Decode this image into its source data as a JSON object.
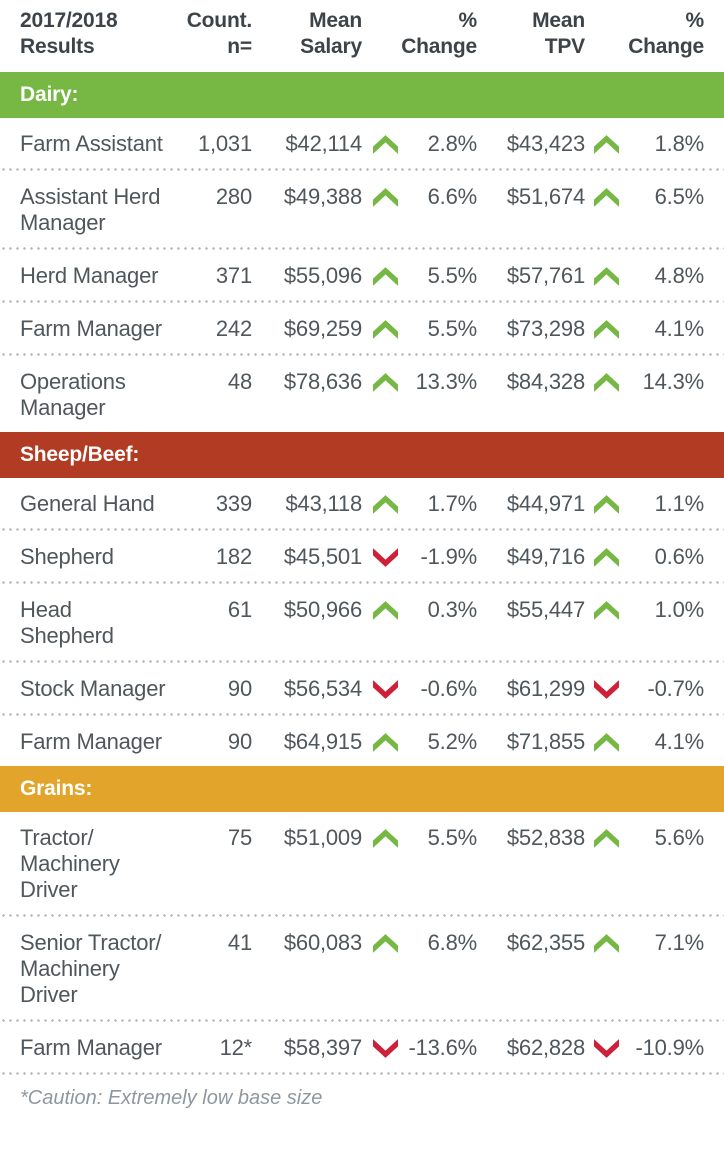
{
  "header": {
    "col_role": "2017/2018\nResults",
    "col_count": "Count.\nn=",
    "col_salary": "Mean\nSalary",
    "col_salary_change": "%\nChange",
    "col_tpv": "Mean\nTPV",
    "col_tpv_change": "%\nChange"
  },
  "colors": {
    "up_arrow": "#76b843",
    "down_arrow": "#cd2139",
    "dairy_bar": "#76b843",
    "sheep_beef_bar": "#b23b24",
    "grains_bar": "#e2a42b",
    "header_text": "#3d4449",
    "body_text": "#50575c",
    "footnote_text": "#8e97a0"
  },
  "sections": [
    {
      "label": "Dairy:",
      "name": "dairy",
      "color": "#76b843",
      "rows": [
        {
          "role": "Farm Assistant",
          "count": "1,031",
          "salary": "$42,114",
          "salary_trend": "up",
          "salary_change": "2.8%",
          "tpv": "$43,423",
          "tpv_trend": "up",
          "tpv_change": "1.8%"
        },
        {
          "role": "Assistant Herd\nManager",
          "count": "280",
          "salary": "$49,388",
          "salary_trend": "up",
          "salary_change": "6.6%",
          "tpv": "$51,674",
          "tpv_trend": "up",
          "tpv_change": "6.5%"
        },
        {
          "role": "Herd Manager",
          "count": "371",
          "salary": "$55,096",
          "salary_trend": "up",
          "salary_change": "5.5%",
          "tpv": "$57,761",
          "tpv_trend": "up",
          "tpv_change": "4.8%"
        },
        {
          "role": "Farm Manager",
          "count": "242",
          "salary": "$69,259",
          "salary_trend": "up",
          "salary_change": "5.5%",
          "tpv": "$73,298",
          "tpv_trend": "up",
          "tpv_change": "4.1%"
        },
        {
          "role": "Operations\nManager",
          "count": "48",
          "salary": "$78,636",
          "salary_trend": "up",
          "salary_change": "13.3%",
          "tpv": "$84,328",
          "tpv_trend": "up",
          "tpv_change": "14.3%"
        }
      ]
    },
    {
      "label": "Sheep/Beef:",
      "name": "sheep-beef",
      "color": "#b23b24",
      "rows": [
        {
          "role": "General Hand",
          "count": "339",
          "salary": "$43,118",
          "salary_trend": "up",
          "salary_change": "1.7%",
          "tpv": "$44,971",
          "tpv_trend": "up",
          "tpv_change": "1.1%"
        },
        {
          "role": "Shepherd",
          "count": "182",
          "salary": "$45,501",
          "salary_trend": "down",
          "salary_change": "-1.9%",
          "tpv": "$49,716",
          "tpv_trend": "up",
          "tpv_change": "0.6%"
        },
        {
          "role": "Head\nShepherd",
          "count": "61",
          "salary": "$50,966",
          "salary_trend": "up",
          "salary_change": "0.3%",
          "tpv": "$55,447",
          "tpv_trend": "up",
          "tpv_change": "1.0%"
        },
        {
          "role": "Stock Manager",
          "count": "90",
          "salary": "$56,534",
          "salary_trend": "down",
          "salary_change": "-0.6%",
          "tpv": "$61,299",
          "tpv_trend": "down",
          "tpv_change": "-0.7%"
        },
        {
          "role": "Farm Manager",
          "count": "90",
          "salary": "$64,915",
          "salary_trend": "up",
          "salary_change": "5.2%",
          "tpv": "$71,855",
          "tpv_trend": "up",
          "tpv_change": "4.1%"
        }
      ]
    },
    {
      "label": "Grains:",
      "name": "grains",
      "color": "#e2a42b",
      "rows": [
        {
          "role": "Tractor/\nMachinery\nDriver",
          "count": "75",
          "salary": "$51,009",
          "salary_trend": "up",
          "salary_change": "5.5%",
          "tpv": "$52,838",
          "tpv_trend": "up",
          "tpv_change": "5.6%"
        },
        {
          "role": "Senior Tractor/\nMachinery\nDriver",
          "count": "41",
          "salary": "$60,083",
          "salary_trend": "up",
          "salary_change": "6.8%",
          "tpv": "$62,355",
          "tpv_trend": "up",
          "tpv_change": "7.1%"
        },
        {
          "role": "Farm Manager",
          "count": "12*",
          "salary": "$58,397",
          "salary_trend": "down",
          "salary_change": "-13.6%",
          "tpv": "$62,828",
          "tpv_trend": "down",
          "tpv_change": "-10.9%"
        }
      ]
    }
  ],
  "footnote": "*Caution: Extremely low base size"
}
